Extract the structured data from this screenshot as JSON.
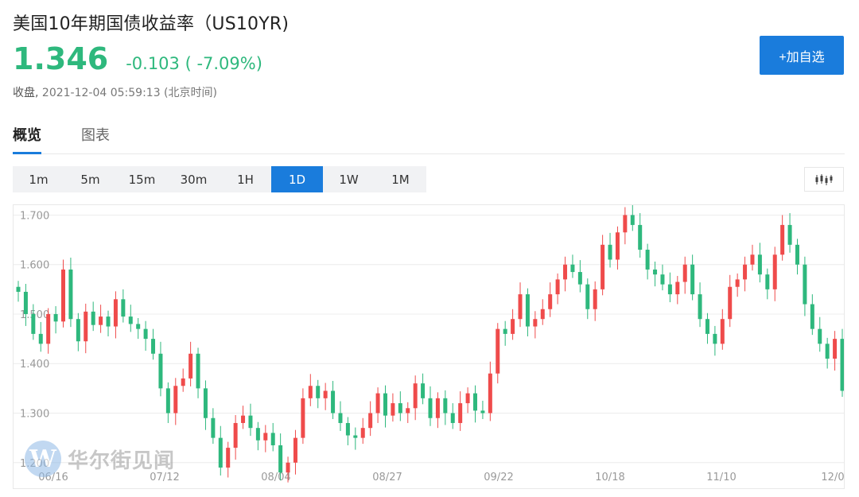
{
  "header": {
    "title": "美国10年期国债收益率（US10YR)",
    "price": "1.346",
    "change": "-0.103 ( -7.09%)",
    "status": "收盘,",
    "timestamp": "2021-12-04 05:59:13 (北京时间)",
    "add_button": "+加自选"
  },
  "tabs": [
    {
      "label": "概览",
      "active": true
    },
    {
      "label": "图表",
      "active": false
    }
  ],
  "periods": [
    {
      "label": "1m",
      "active": false
    },
    {
      "label": "5m",
      "active": false
    },
    {
      "label": "15m",
      "active": false
    },
    {
      "label": "30m",
      "active": false
    },
    {
      "label": "1H",
      "active": false
    },
    {
      "label": "1D",
      "active": true
    },
    {
      "label": "1W",
      "active": false
    },
    {
      "label": "1M",
      "active": false
    }
  ],
  "chart_type_icon": "candlestick-chart-icon",
  "watermark": {
    "logo": "W",
    "text": "华尔街见闻"
  },
  "colors": {
    "up": "#ef4b4b",
    "down": "#2eb87d",
    "accent": "#1a7cdc"
  },
  "chart_data": {
    "type": "candlestick",
    "ylim": [
      1.19,
      1.72
    ],
    "y_ticks": [
      "1.200",
      "1.300",
      "1.400",
      "1.500",
      "1.600",
      "1.700"
    ],
    "x_ticks": [
      "06/16",
      "07/12",
      "08/04",
      "08/27",
      "09/22",
      "10/18",
      "11/10",
      "12/0"
    ],
    "grid": true,
    "series_closes": [
      1.545,
      1.5,
      1.46,
      1.44,
      1.5,
      1.485,
      1.59,
      1.49,
      1.445,
      1.505,
      1.478,
      1.495,
      1.475,
      1.53,
      1.495,
      1.48,
      1.47,
      1.45,
      1.42,
      1.35,
      1.3,
      1.355,
      1.37,
      1.42,
      1.35,
      1.29,
      1.25,
      1.19,
      1.23,
      1.28,
      1.295,
      1.27,
      1.245,
      1.26,
      1.235,
      1.18,
      1.2,
      1.25,
      1.33,
      1.355,
      1.33,
      1.345,
      1.3,
      1.28,
      1.255,
      1.25,
      1.27,
      1.3,
      1.34,
      1.295,
      1.32,
      1.3,
      1.31,
      1.36,
      1.33,
      1.29,
      1.33,
      1.3,
      1.28,
      1.32,
      1.34,
      1.305,
      1.3,
      1.38,
      1.47,
      1.46,
      1.49,
      1.54,
      1.475,
      1.49,
      1.51,
      1.54,
      1.57,
      1.6,
      1.585,
      1.56,
      1.51,
      1.55,
      1.64,
      1.61,
      1.665,
      1.7,
      1.68,
      1.63,
      1.59,
      1.58,
      1.56,
      1.54,
      1.565,
      1.6,
      1.54,
      1.49,
      1.46,
      1.44,
      1.49,
      1.555,
      1.57,
      1.6,
      1.62,
      1.58,
      1.55,
      1.62,
      1.68,
      1.64,
      1.6,
      1.52,
      1.47,
      1.44,
      1.41,
      1.45,
      1.345
    ]
  }
}
